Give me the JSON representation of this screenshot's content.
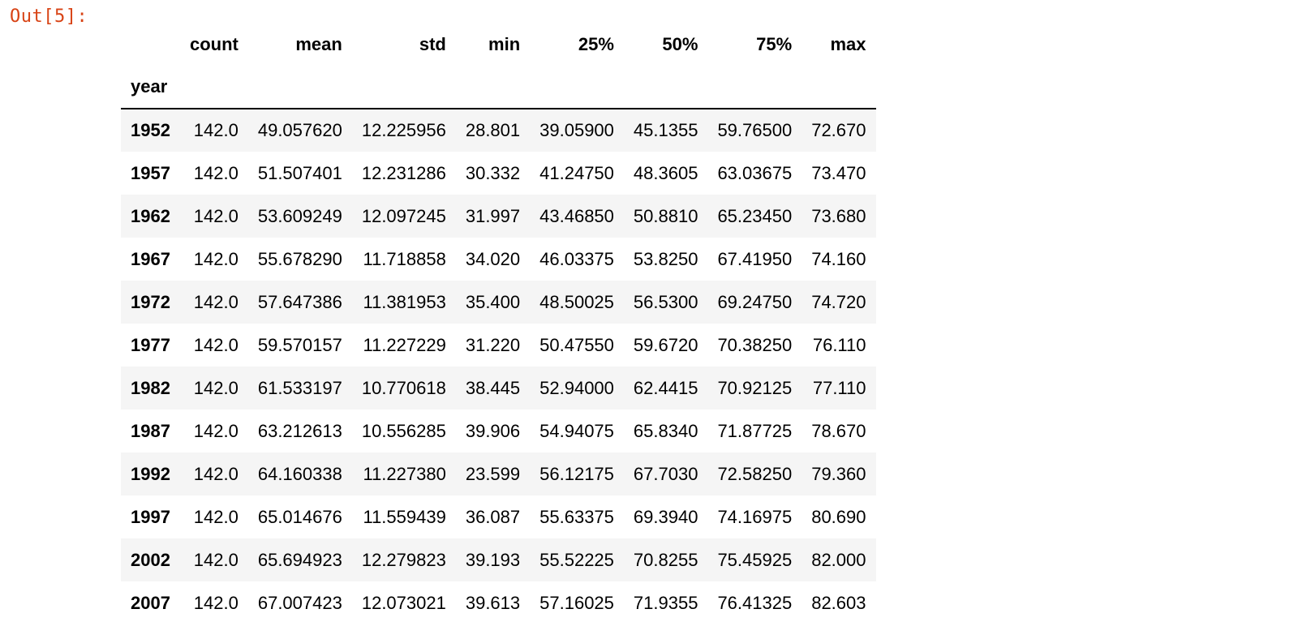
{
  "output_prompt": "Out[5]:",
  "table": {
    "index_name": "year",
    "columns": [
      "count",
      "mean",
      "std",
      "min",
      "25%",
      "50%",
      "75%",
      "max"
    ],
    "rows": [
      {
        "year": "1952",
        "values": [
          "142.0",
          "49.057620",
          "12.225956",
          "28.801",
          "39.05900",
          "45.1355",
          "59.76500",
          "72.670"
        ]
      },
      {
        "year": "1957",
        "values": [
          "142.0",
          "51.507401",
          "12.231286",
          "30.332",
          "41.24750",
          "48.3605",
          "63.03675",
          "73.470"
        ]
      },
      {
        "year": "1962",
        "values": [
          "142.0",
          "53.609249",
          "12.097245",
          "31.997",
          "43.46850",
          "50.8810",
          "65.23450",
          "73.680"
        ]
      },
      {
        "year": "1967",
        "values": [
          "142.0",
          "55.678290",
          "11.718858",
          "34.020",
          "46.03375",
          "53.8250",
          "67.41950",
          "74.160"
        ]
      },
      {
        "year": "1972",
        "values": [
          "142.0",
          "57.647386",
          "11.381953",
          "35.400",
          "48.50025",
          "56.5300",
          "69.24750",
          "74.720"
        ]
      },
      {
        "year": "1977",
        "values": [
          "142.0",
          "59.570157",
          "11.227229",
          "31.220",
          "50.47550",
          "59.6720",
          "70.38250",
          "76.110"
        ]
      },
      {
        "year": "1982",
        "values": [
          "142.0",
          "61.533197",
          "10.770618",
          "38.445",
          "52.94000",
          "62.4415",
          "70.92125",
          "77.110"
        ]
      },
      {
        "year": "1987",
        "values": [
          "142.0",
          "63.212613",
          "10.556285",
          "39.906",
          "54.94075",
          "65.8340",
          "71.87725",
          "78.670"
        ]
      },
      {
        "year": "1992",
        "values": [
          "142.0",
          "64.160338",
          "11.227380",
          "23.599",
          "56.12175",
          "67.7030",
          "72.58250",
          "79.360"
        ]
      },
      {
        "year": "1997",
        "values": [
          "142.0",
          "65.014676",
          "11.559439",
          "36.087",
          "55.63375",
          "69.3940",
          "74.16975",
          "80.690"
        ]
      },
      {
        "year": "2002",
        "values": [
          "142.0",
          "65.694923",
          "12.279823",
          "39.193",
          "55.52225",
          "70.8255",
          "75.45925",
          "82.000"
        ]
      },
      {
        "year": "2007",
        "values": [
          "142.0",
          "67.007423",
          "12.073021",
          "39.613",
          "57.16025",
          "71.9355",
          "76.41325",
          "82.603"
        ]
      }
    ]
  },
  "colors": {
    "prompt": "#d84315",
    "stripe": "#f5f5f5",
    "header_rule": "#000000"
  }
}
